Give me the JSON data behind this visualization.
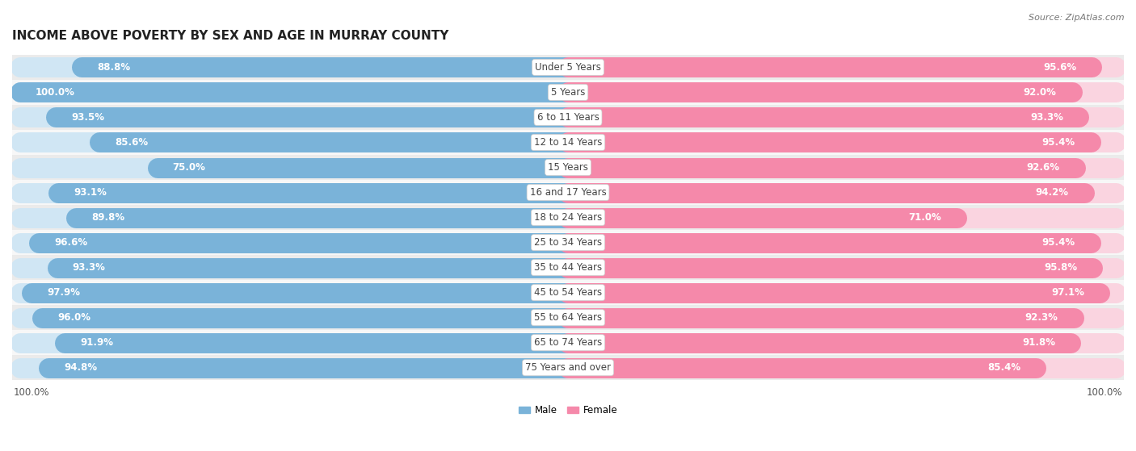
{
  "title": "INCOME ABOVE POVERTY BY SEX AND AGE IN MURRAY COUNTY",
  "source": "Source: ZipAtlas.com",
  "categories": [
    "Under 5 Years",
    "5 Years",
    "6 to 11 Years",
    "12 to 14 Years",
    "15 Years",
    "16 and 17 Years",
    "18 to 24 Years",
    "25 to 34 Years",
    "35 to 44 Years",
    "45 to 54 Years",
    "55 to 64 Years",
    "65 to 74 Years",
    "75 Years and over"
  ],
  "male_values": [
    88.8,
    100.0,
    93.5,
    85.6,
    75.0,
    93.1,
    89.8,
    96.6,
    93.3,
    97.9,
    96.0,
    91.9,
    94.8
  ],
  "female_values": [
    95.6,
    92.0,
    93.3,
    95.4,
    92.6,
    94.2,
    71.0,
    95.4,
    95.8,
    97.1,
    92.3,
    91.8,
    85.4
  ],
  "male_color": "#7ab3d9",
  "female_color": "#f589aa",
  "male_label": "Male",
  "female_label": "Female",
  "background_color": "#ffffff",
  "max_value": 100.0,
  "title_fontsize": 11,
  "label_fontsize": 8.5,
  "value_fontsize": 8.5,
  "tick_fontsize": 8.5,
  "source_fontsize": 8
}
